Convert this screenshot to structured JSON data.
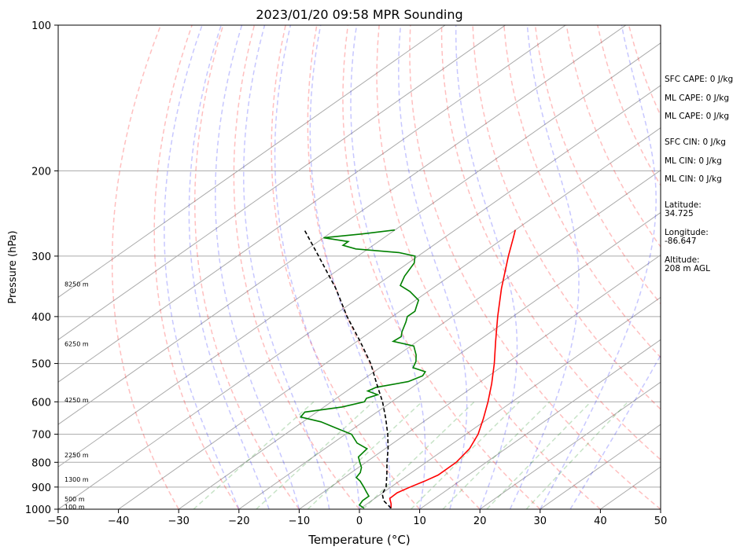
{
  "chart_data": {
    "type": "line",
    "title": "2023/01/20 09:58 MPR Sounding",
    "xlabel": "Temperature (°C)",
    "ylabel": "Pressure (hPa)",
    "xlim": [
      -50,
      50
    ],
    "ylim": [
      1000,
      100
    ],
    "y_scale": "log",
    "grid": true,
    "x_ticks": [
      -50,
      -40,
      -30,
      -20,
      -10,
      0,
      10,
      20,
      30,
      40,
      50
    ],
    "y_ticks": [
      1000,
      900,
      800,
      700,
      600,
      500,
      400,
      300,
      200,
      100
    ],
    "isotherms_skew": [
      -100,
      -90,
      -80,
      -70,
      -60,
      -50,
      -40,
      -30,
      -20,
      -10,
      0,
      10,
      20,
      30,
      40,
      50
    ],
    "dry_adiabats_theta_C": [
      -30,
      -20,
      -10,
      0,
      10,
      20,
      30,
      40,
      50,
      60,
      70,
      80,
      90,
      100,
      110,
      120,
      130,
      140,
      150
    ],
    "moist_adiabats_start_C": [
      -20,
      -15,
      -10,
      -5,
      0,
      5,
      10,
      15,
      20,
      25,
      30,
      35
    ],
    "mixing_ratio_gkg": [
      0.4,
      1,
      2,
      4,
      7,
      10,
      16,
      24
    ],
    "series": [
      {
        "name": "",
        "color": "#ff0000",
        "points": [
          [
            995,
            5.0
          ],
          [
            975,
            4.0
          ],
          [
            950,
            2.5
          ],
          [
            925,
            2.4
          ],
          [
            900,
            3.2
          ],
          [
            875,
            4.2
          ],
          [
            850,
            5.0
          ],
          [
            800,
            5.0
          ],
          [
            750,
            4.0
          ],
          [
            700,
            2.0
          ],
          [
            650,
            -0.8
          ],
          [
            600,
            -4.0
          ],
          [
            550,
            -7.7
          ],
          [
            500,
            -12.0
          ],
          [
            450,
            -17.0
          ],
          [
            400,
            -22.5
          ],
          [
            350,
            -28.5
          ],
          [
            300,
            -35.0
          ],
          [
            275,
            -38.5
          ],
          [
            265,
            -40.0
          ]
        ]
      },
      {
        "name": "",
        "color": "#008000",
        "points": [
          [
            995,
            0.5
          ],
          [
            980,
            -1.0
          ],
          [
            960,
            -1.5
          ],
          [
            940,
            -1.5
          ],
          [
            920,
            -3.0
          ],
          [
            900,
            -4.5
          ],
          [
            875,
            -6.5
          ],
          [
            860,
            -8.0
          ],
          [
            840,
            -8.5
          ],
          [
            820,
            -9.5
          ],
          [
            800,
            -11.0
          ],
          [
            780,
            -12.5
          ],
          [
            750,
            -13.0
          ],
          [
            730,
            -16.0
          ],
          [
            700,
            -19.0
          ],
          [
            680,
            -23.0
          ],
          [
            660,
            -27.0
          ],
          [
            645,
            -31.5
          ],
          [
            630,
            -32.0
          ],
          [
            615,
            -27.0
          ],
          [
            600,
            -24.5
          ],
          [
            590,
            -25.0
          ],
          [
            580,
            -24.0
          ],
          [
            570,
            -26.5
          ],
          [
            560,
            -26.0
          ],
          [
            545,
            -22.0
          ],
          [
            530,
            -21.0
          ],
          [
            520,
            -21.5
          ],
          [
            510,
            -24.5
          ],
          [
            495,
            -25.5
          ],
          [
            480,
            -27.0
          ],
          [
            460,
            -29.5
          ],
          [
            450,
            -34.0
          ],
          [
            440,
            -33.8
          ],
          [
            430,
            -34.8
          ],
          [
            410,
            -36.5
          ],
          [
            400,
            -37.5
          ],
          [
            390,
            -37.5
          ],
          [
            380,
            -38.5
          ],
          [
            370,
            -39.5
          ],
          [
            355,
            -43.0
          ],
          [
            345,
            -46.0
          ],
          [
            330,
            -47.5
          ],
          [
            310,
            -49.0
          ],
          [
            300,
            -50.5
          ],
          [
            295,
            -54.0
          ],
          [
            290,
            -62.0
          ],
          [
            285,
            -65.0
          ],
          [
            280,
            -65.0
          ],
          [
            275,
            -70.0
          ],
          [
            270,
            -64.5
          ],
          [
            265,
            -60.0
          ]
        ]
      },
      {
        "name": "",
        "color": "#000000",
        "dash": true,
        "points": [
          [
            995,
            5.0
          ],
          [
            960,
            2.0
          ],
          [
            930,
            0.2
          ],
          [
            900,
            -0.8
          ],
          [
            850,
            -3.5
          ],
          [
            800,
            -6.5
          ],
          [
            750,
            -9.5
          ],
          [
            700,
            -13.0
          ],
          [
            650,
            -17.0
          ],
          [
            600,
            -21.5
          ],
          [
            550,
            -26.8
          ],
          [
            500,
            -32.5
          ],
          [
            450,
            -39.5
          ],
          [
            400,
            -47.5
          ],
          [
            350,
            -56.0
          ],
          [
            300,
            -66.5
          ],
          [
            265,
            -75.0
          ]
        ]
      }
    ],
    "height_labels": [
      {
        "text": "100 m",
        "p": 988
      },
      {
        "text": "500 m",
        "p": 953
      },
      {
        "text": "1300 m",
        "p": 868
      },
      {
        "text": "2250 m",
        "p": 772
      },
      {
        "text": "4250 m",
        "p": 595
      },
      {
        "text": "6250 m",
        "p": 455
      },
      {
        "text": "8250 m",
        "p": 343
      }
    ],
    "side_text": [
      "SFC CAPE: 0 J/kg",
      "ML CAPE: 0 J/kg",
      "ML CAPE: 0 J/kg",
      "SFC CIN: 0 J/kg",
      "ML CIN: 0 J/kg",
      "ML CIN: 0 J/kg",
      "Latitude:",
      "34.725",
      "Longitude:",
      "-86.647",
      "Altitude:",
      "208 m AGL"
    ]
  }
}
